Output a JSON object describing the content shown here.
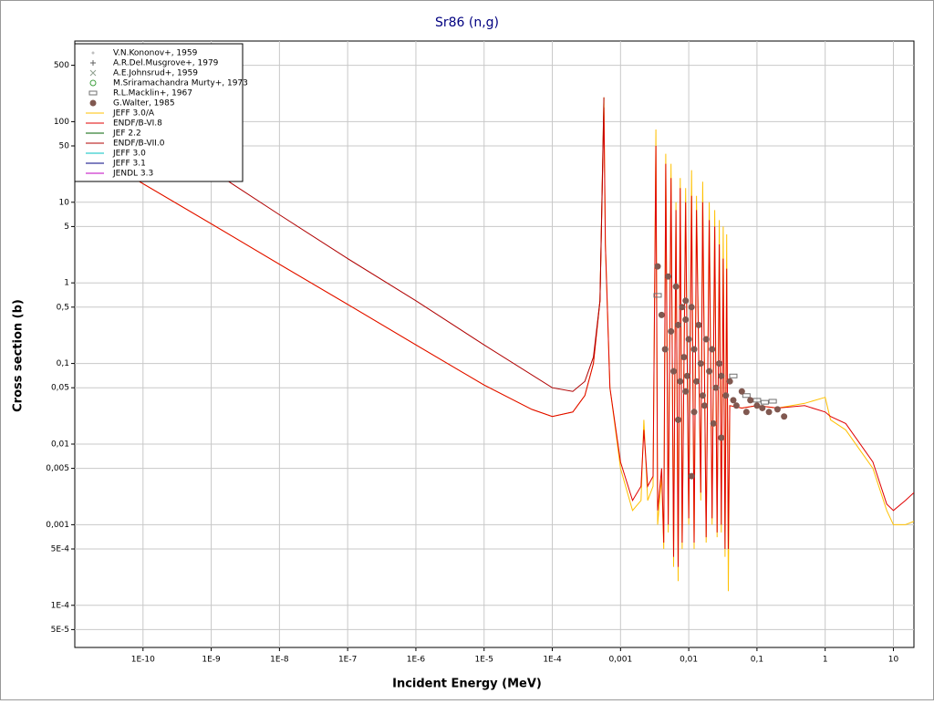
{
  "chart_data": {
    "type": "line",
    "title": "Sr86 (n,g)",
    "x_label": "Incident Energy (MeV)",
    "y_label": "Cross section (b)",
    "xscale": "log",
    "yscale": "log",
    "grid": true,
    "legend": "upper left",
    "xlim": [
      1e-11,
      20
    ],
    "ylim": [
      3e-05,
      1000
    ],
    "xticks": [
      {
        "value": 1e-10,
        "label": "1E-10"
      },
      {
        "value": 1e-09,
        "label": "1E-9"
      },
      {
        "value": 1e-08,
        "label": "1E-8"
      },
      {
        "value": 1e-07,
        "label": "1E-7"
      },
      {
        "value": 1e-06,
        "label": "1E-6"
      },
      {
        "value": 1e-05,
        "label": "1E-5"
      },
      {
        "value": 0.0001,
        "label": "1E-4"
      },
      {
        "value": 0.001,
        "label": "0,001"
      },
      {
        "value": 0.01,
        "label": "0,01"
      },
      {
        "value": 0.1,
        "label": "0,1"
      },
      1,
      10
    ],
    "yticks": [
      500,
      100,
      50,
      10,
      5,
      1,
      {
        "value": 0.5,
        "label": "0,5"
      },
      {
        "value": 0.1,
        "label": "0,1"
      },
      {
        "value": 0.05,
        "label": "0,05"
      },
      {
        "value": 0.01,
        "label": "0,01"
      },
      {
        "value": 0.005,
        "label": "0,005"
      },
      {
        "value": 0.001,
        "label": "0,001"
      },
      {
        "value": 0.0005,
        "label": "5E-4"
      },
      {
        "value": 0.0001,
        "label": "1E-4"
      },
      {
        "value": 5e-05,
        "label": "5E-5"
      }
    ],
    "series": [
      {
        "name": "V.N.Kononov+, 1959",
        "style": "dot",
        "color": "#c0c0c0",
        "x": [],
        "values": []
      },
      {
        "name": "A.R.Del.Musgrove+, 1979",
        "style": "plus",
        "color": "#606060",
        "x": [],
        "values": []
      },
      {
        "name": "A.E.Johnsrud+, 1959",
        "style": "cross",
        "color": "#90a090",
        "x": [],
        "values": []
      },
      {
        "name": "M.Sriramachandra Murty+, 1973",
        "style": "circle",
        "color": "#40a040",
        "x": [],
        "values": []
      },
      {
        "name": "R.L.Macklin+, 1967",
        "style": "box",
        "color": "#707070",
        "x": [
          0.0035,
          0.045,
          0.07,
          0.1,
          0.13,
          0.17
        ],
        "values": [
          0.7,
          0.07,
          0.04,
          0.035,
          0.033,
          0.034
        ]
      },
      {
        "name": "G.Walter, 1985",
        "style": "filled-circle",
        "color": "#805850",
        "x": [
          0.0035,
          0.004,
          0.0045,
          0.005,
          0.0055,
          0.006,
          0.0065,
          0.007,
          0.0075,
          0.008,
          0.0085,
          0.009,
          0.0095,
          0.01,
          0.011,
          0.012,
          0.013,
          0.014,
          0.015,
          0.016,
          0.018,
          0.02,
          0.022,
          0.025,
          0.028,
          0.03,
          0.035,
          0.04,
          0.05,
          0.06,
          0.07,
          0.08,
          0.1,
          0.12,
          0.15,
          0.2,
          0.25,
          0.007,
          0.009,
          0.012,
          0.017,
          0.023,
          0.03,
          0.045,
          0.009,
          0.011
        ],
        "values": [
          1.6,
          0.4,
          0.15,
          1.2,
          0.25,
          0.08,
          0.9,
          0.3,
          0.06,
          0.5,
          0.12,
          0.35,
          0.07,
          0.2,
          0.5,
          0.15,
          0.06,
          0.3,
          0.1,
          0.04,
          0.2,
          0.08,
          0.15,
          0.05,
          0.1,
          0.07,
          0.04,
          0.06,
          0.03,
          0.045,
          0.025,
          0.035,
          0.03,
          0.028,
          0.025,
          0.027,
          0.022,
          0.02,
          0.045,
          0.025,
          0.03,
          0.018,
          0.012,
          0.035,
          0.6,
          0.004
        ]
      },
      {
        "name": "JEFF 3.0/A",
        "style": "line",
        "color": "#ffc000",
        "x": [
          1e-11,
          1e-10,
          1e-09,
          1e-08,
          1e-07,
          1e-06,
          1e-05,
          5e-05,
          0.0001,
          0.0002,
          0.0003,
          0.0004,
          0.0005,
          0.00057,
          0.0006,
          0.0007,
          0.001,
          0.0015,
          0.002,
          0.0022,
          0.0025,
          0.003,
          0.0033,
          0.0035,
          0.004,
          0.0043,
          0.0046,
          0.005,
          0.0055,
          0.006,
          0.0065,
          0.007,
          0.0075,
          0.008,
          0.009,
          0.01,
          0.011,
          0.012,
          0.013,
          0.015,
          0.016,
          0.018,
          0.02,
          0.022,
          0.024,
          0.026,
          0.028,
          0.03,
          0.032,
          0.034,
          0.036,
          0.038,
          0.04,
          0.06,
          0.1,
          0.2,
          0.5,
          1,
          1.2,
          2,
          5,
          8,
          10,
          15,
          20
        ],
        "values": [
          54,
          17,
          5.4,
          1.7,
          0.54,
          0.17,
          0.054,
          0.027,
          0.022,
          0.025,
          0.04,
          0.1,
          0.6,
          200,
          3,
          0.05,
          0.005,
          0.0015,
          0.002,
          0.02,
          0.002,
          0.003,
          80,
          0.001,
          0.004,
          0.0005,
          40,
          0.0008,
          30,
          0.0003,
          10,
          0.0002,
          20,
          0.0005,
          15,
          0.001,
          25,
          0.0005,
          12,
          0.002,
          18,
          0.0006,
          10,
          0.001,
          8,
          0.0007,
          6,
          0.0008,
          5,
          0.0004,
          4,
          0.00015,
          0.03,
          0.028,
          0.03,
          0.028,
          0.032,
          0.038,
          0.02,
          0.015,
          0.005,
          0.0015,
          0.001,
          0.001,
          0.0011
        ]
      },
      {
        "name": "ENDF/B-VI.8",
        "style": "line",
        "color": "#e00000",
        "x": [
          1e-11,
          1e-10,
          1e-09,
          1e-08,
          1e-07,
          1e-06,
          1e-05,
          5e-05,
          0.0001,
          0.0002,
          0.0003,
          0.0004,
          0.0005,
          0.00057,
          0.0006,
          0.0007,
          0.001,
          0.0015,
          0.002,
          0.0022,
          0.0025,
          0.003,
          0.0033,
          0.0035,
          0.004,
          0.0043,
          0.0046,
          0.005,
          0.0055,
          0.006,
          0.0065,
          0.007,
          0.0075,
          0.008,
          0.009,
          0.01,
          0.011,
          0.012,
          0.013,
          0.015,
          0.016,
          0.018,
          0.02,
          0.022,
          0.024,
          0.026,
          0.028,
          0.03,
          0.032,
          0.034,
          0.036,
          0.038,
          0.04,
          0.06,
          0.1,
          0.2,
          0.5,
          1,
          1.2,
          2,
          5,
          8,
          10,
          15,
          20
        ],
        "values": [
          54,
          17,
          5.4,
          1.7,
          0.54,
          0.17,
          0.054,
          0.027,
          0.022,
          0.025,
          0.04,
          0.1,
          0.6,
          150,
          3,
          0.05,
          0.006,
          0.002,
          0.003,
          0.015,
          0.003,
          0.004,
          50,
          0.0015,
          0.005,
          0.0006,
          30,
          0.001,
          20,
          0.0004,
          8,
          0.0003,
          15,
          0.0006,
          10,
          0.0012,
          12,
          0.0006,
          8,
          0.0025,
          10,
          0.0007,
          6,
          0.0012,
          5,
          0.0008,
          3,
          0.001,
          2,
          0.0005,
          1.5,
          0.0005,
          0.03,
          0.028,
          0.03,
          0.028,
          0.03,
          0.025,
          0.022,
          0.018,
          0.006,
          0.0018,
          0.0015,
          0.002,
          0.0025
        ]
      },
      {
        "name": "JEF 2.2",
        "style": "line",
        "color": "#006000",
        "x": [],
        "values": []
      },
      {
        "name": "ENDF/B-VII.0",
        "style": "line",
        "color": "#b00000",
        "x": [
          1e-11,
          1e-10,
          1e-09,
          1e-08,
          1e-07,
          1e-06,
          1e-05,
          0.0001,
          0.0002,
          0.0003,
          0.0004,
          0.0005,
          0.00057
        ],
        "values": [
          320,
          90,
          25,
          7,
          2,
          0.6,
          0.17,
          0.05,
          0.045,
          0.06,
          0.12,
          0.6,
          200
        ]
      },
      {
        "name": "JEFF 3.0",
        "style": "line",
        "color": "#00c0c0",
        "x": [],
        "values": []
      },
      {
        "name": "JEFF 3.1",
        "style": "line",
        "color": "#000080",
        "x": [],
        "values": []
      },
      {
        "name": "JENDL 3.3",
        "style": "line",
        "color": "#c000c0",
        "x": [],
        "values": []
      }
    ]
  }
}
